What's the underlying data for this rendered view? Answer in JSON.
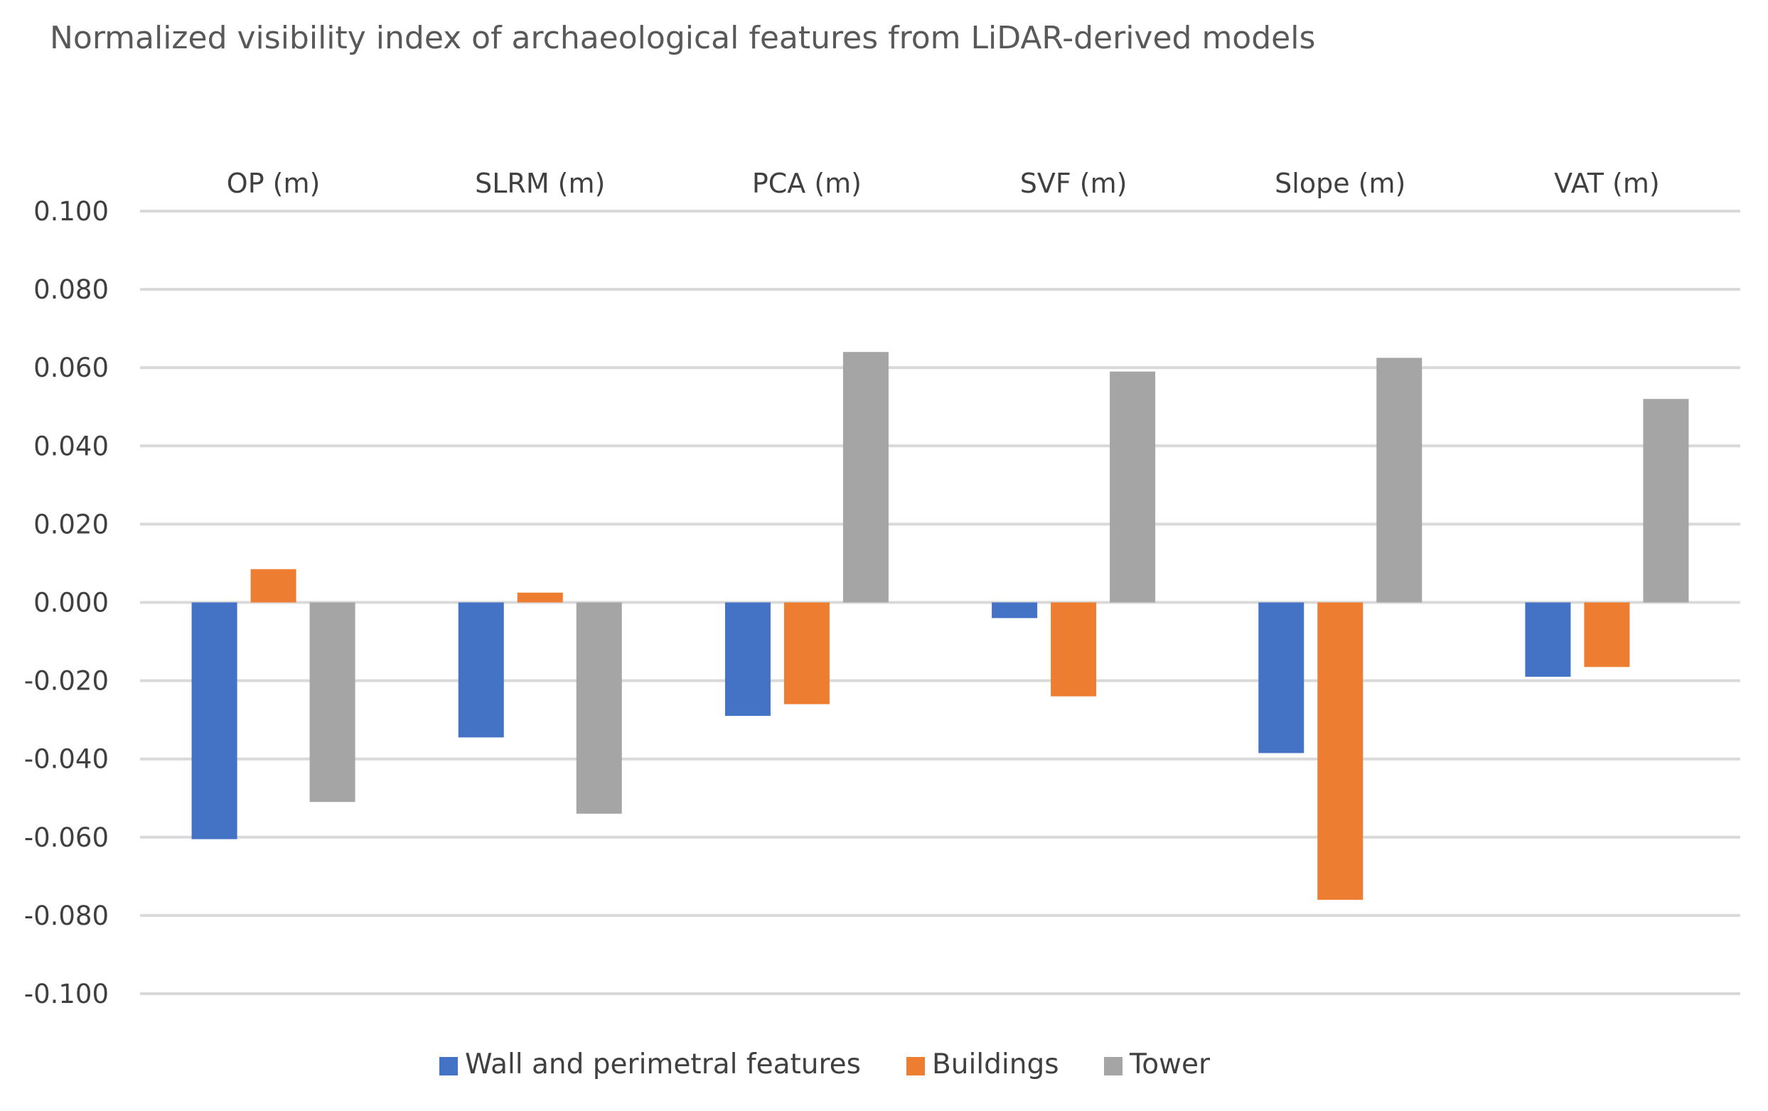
{
  "chart_data": {
    "type": "bar",
    "title": "Normalized visibility index of archaeological features from LiDAR-derived models",
    "xlabel": "",
    "ylabel": "",
    "ylim": [
      -0.1,
      0.1
    ],
    "yticks": [
      0.1,
      0.08,
      0.06,
      0.04,
      0.02,
      0.0,
      -0.02,
      -0.04,
      -0.06,
      -0.08,
      -0.1
    ],
    "ytick_labels": [
      "0.100",
      "0.080",
      "0.060",
      "0.040",
      "0.020",
      "0.000",
      "-0.020",
      "-0.040",
      "-0.060",
      "-0.080",
      "-0.100"
    ],
    "grid": true,
    "category_labels_position": "top",
    "legend_position": "bottom",
    "categories": [
      "OP (m)",
      "SLRM (m)",
      "PCA (m)",
      "SVF (m)",
      "Slope (m)",
      "VAT (m)"
    ],
    "series": [
      {
        "name": "Wall and perimetral features",
        "color": "#4472c4",
        "values": [
          -0.0605,
          -0.0345,
          -0.029,
          -0.004,
          -0.0385,
          -0.019
        ]
      },
      {
        "name": "Buildings",
        "color": "#ed7d31",
        "values": [
          0.0085,
          0.0025,
          -0.026,
          -0.024,
          -0.076,
          -0.0165
        ]
      },
      {
        "name": "Tower",
        "color": "#a5a5a5",
        "values": [
          -0.051,
          -0.054,
          0.064,
          0.059,
          0.0625,
          0.052
        ]
      }
    ]
  }
}
